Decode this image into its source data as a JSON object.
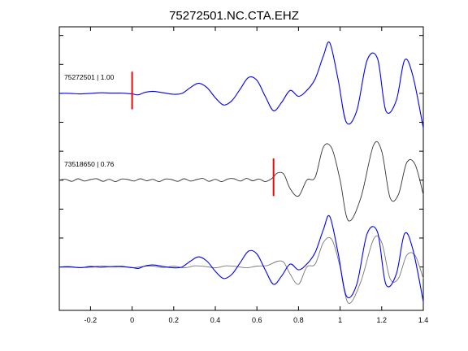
{
  "figure": {
    "title": "75272501.NC.CTA.EHZ"
  },
  "chart_data": {
    "type": "line",
    "title": "75272501.NC.CTA.EHZ",
    "xlabel": "",
    "ylabel": "",
    "xlim": [
      -0.35,
      1.4
    ],
    "xticks": [
      -0.2,
      0,
      0.2,
      0.4,
      0.6,
      0.8,
      1,
      1.2,
      1.4
    ],
    "xtick_labels": [
      "-0.2",
      "0",
      "0.2",
      "0.4",
      "0.6",
      "0.8",
      "1",
      "1.2",
      "1.4"
    ],
    "ylim": [
      -1.5,
      8.3
    ],
    "yticks": [
      0,
      1,
      2,
      3,
      4,
      5,
      6,
      7,
      8
    ],
    "grid": false,
    "colors": {
      "master": "#0000ff",
      "match": "#333333",
      "overlay_match": "#777777",
      "pick": "#ff0000"
    },
    "traces": [
      {
        "label": "75272501 | 1.00",
        "offset": 6,
        "color": "#0000ff",
        "pick_time": 0.0,
        "x": [
          -0.35,
          -0.3,
          -0.25,
          -0.2,
          -0.15,
          -0.1,
          -0.05,
          0,
          0.03,
          0.06,
          0.1,
          0.15,
          0.2,
          0.24,
          0.28,
          0.32,
          0.36,
          0.4,
          0.44,
          0.48,
          0.52,
          0.56,
          0.6,
          0.64,
          0.68,
          0.72,
          0.76,
          0.8,
          0.84,
          0.88,
          0.92,
          0.95,
          0.99,
          1.03,
          1.08,
          1.13,
          1.18,
          1.22,
          1.27,
          1.31,
          1.35,
          1.4
        ],
        "y": [
          0,
          0,
          -0.02,
          0,
          0.02,
          0.01,
          0.01,
          -0.02,
          -0.05,
          0.03,
          0.07,
          0.02,
          -0.03,
          0,
          0.2,
          0.35,
          0.2,
          -0.15,
          -0.4,
          -0.25,
          0.15,
          0.55,
          0.45,
          -0.1,
          -0.6,
          -0.3,
          0.1,
          -0.1,
          0.1,
          0.5,
          1.3,
          1.75,
          0.5,
          -1.0,
          -0.6,
          1.15,
          1.2,
          -0.6,
          -0.25,
          1.15,
          0.6,
          -1.2
        ]
      },
      {
        "label": "73518650 | 0.76",
        "offset": 3,
        "color": "#333333",
        "pick_time": 0.68,
        "x": [
          -0.35,
          -0.32,
          -0.29,
          -0.26,
          -0.23,
          -0.2,
          -0.17,
          -0.14,
          -0.11,
          -0.08,
          -0.05,
          -0.02,
          0.01,
          0.04,
          0.07,
          0.1,
          0.13,
          0.16,
          0.19,
          0.22,
          0.25,
          0.28,
          0.31,
          0.34,
          0.37,
          0.4,
          0.43,
          0.46,
          0.49,
          0.52,
          0.55,
          0.58,
          0.61,
          0.64,
          0.67,
          0.7,
          0.73,
          0.76,
          0.8,
          0.84,
          0.88,
          0.92,
          0.96,
          1.0,
          1.04,
          1.1,
          1.16,
          1.2,
          1.24,
          1.28,
          1.32,
          1.36,
          1.4
        ],
        "y": [
          0,
          0.03,
          -0.04,
          0.05,
          -0.03,
          0.02,
          0.05,
          -0.04,
          0.03,
          -0.05,
          0.04,
          0.02,
          -0.03,
          0.05,
          -0.02,
          0.03,
          -0.05,
          0.04,
          0.02,
          -0.04,
          0.05,
          -0.03,
          0.02,
          0.06,
          -0.04,
          0.03,
          -0.05,
          0.04,
          0.05,
          -0.03,
          0.06,
          -0.02,
          0.04,
          -0.05,
          0.05,
          0.25,
          0.2,
          -0.3,
          -0.55,
          0.0,
          0.1,
          1.15,
          1.1,
          0.0,
          -1.4,
          -0.6,
          1.2,
          1.0,
          -0.6,
          -0.5,
          0.6,
          0.55,
          -0.5
        ]
      },
      {
        "label": "overlay",
        "offset": 0,
        "color": "#0000ff",
        "x": [
          -0.35,
          -0.3,
          -0.25,
          -0.2,
          -0.15,
          -0.1,
          -0.05,
          0,
          0.03,
          0.06,
          0.1,
          0.15,
          0.2,
          0.24,
          0.28,
          0.32,
          0.36,
          0.4,
          0.44,
          0.48,
          0.52,
          0.56,
          0.6,
          0.64,
          0.68,
          0.72,
          0.76,
          0.8,
          0.84,
          0.88,
          0.92,
          0.95,
          0.99,
          1.03,
          1.08,
          1.13,
          1.18,
          1.22,
          1.27,
          1.31,
          1.35,
          1.4
        ],
        "y": [
          0,
          0,
          -0.02,
          0,
          0.02,
          0.01,
          0.01,
          -0.02,
          -0.05,
          0.03,
          0.07,
          0.02,
          -0.03,
          0,
          0.2,
          0.35,
          0.2,
          -0.15,
          -0.4,
          -0.25,
          0.15,
          0.55,
          0.45,
          -0.1,
          -0.6,
          -0.3,
          0.1,
          -0.1,
          0.1,
          0.5,
          1.3,
          1.75,
          0.5,
          -1.0,
          -0.6,
          1.15,
          1.2,
          -0.6,
          -0.25,
          1.15,
          0.6,
          -1.2
        ]
      },
      {
        "label": "overlay-match",
        "offset": 0,
        "color": "#777777",
        "x": [
          -0.35,
          -0.3,
          -0.25,
          -0.2,
          -0.15,
          -0.1,
          -0.05,
          0,
          0.05,
          0.1,
          0.15,
          0.2,
          0.25,
          0.3,
          0.35,
          0.4,
          0.45,
          0.5,
          0.55,
          0.6,
          0.65,
          0.7,
          0.73,
          0.76,
          0.8,
          0.84,
          0.88,
          0.92,
          0.96,
          1.0,
          1.04,
          1.1,
          1.16,
          1.2,
          1.24,
          1.28,
          1.32,
          1.36,
          1.4
        ],
        "y": [
          0,
          0.02,
          -0.03,
          0.03,
          -0.02,
          0.02,
          0.03,
          -0.03,
          0.02,
          0.03,
          -0.02,
          0.03,
          -0.03,
          0.04,
          0.02,
          -0.03,
          0.04,
          0.02,
          -0.03,
          0.03,
          0.05,
          0.2,
          0.15,
          -0.25,
          -0.6,
          0.0,
          0.1,
          0.85,
          0.95,
          0.0,
          -1.25,
          -0.5,
          0.95,
          0.85,
          -0.4,
          -0.4,
          0.4,
          0.4,
          -0.4
        ]
      }
    ]
  }
}
